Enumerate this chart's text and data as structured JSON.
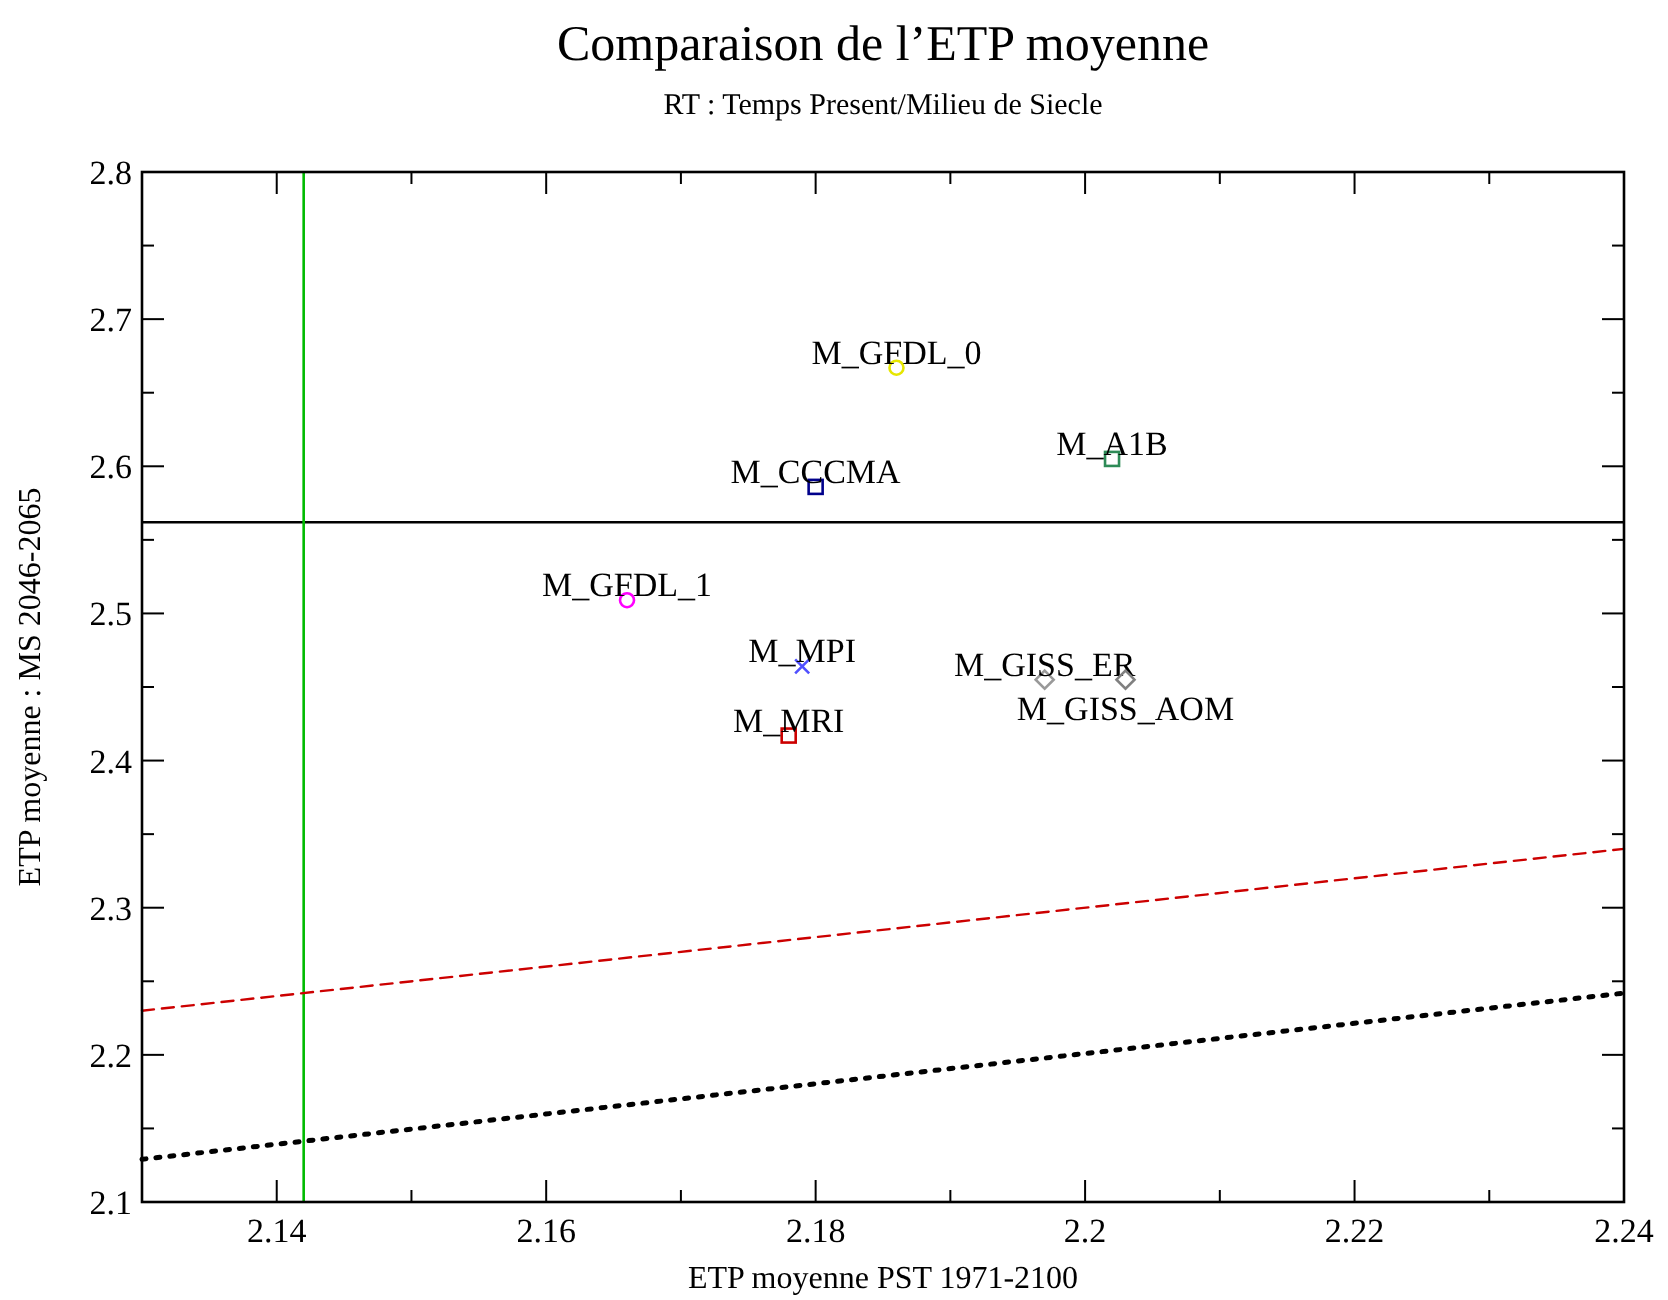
{
  "chart_data": {
    "type": "scatter",
    "title": "Comparaison de l’ETP moyenne",
    "subtitle": "RT : Temps Present/Milieu de Siecle",
    "xlabel": "ETP moyenne PST 1971-2100",
    "ylabel": "ETP moyenne : MS 2046-2065",
    "xlim": [
      2.13,
      2.24
    ],
    "ylim": [
      2.1,
      2.8
    ],
    "xticks": [
      {
        "value": 2.13,
        "label": null
      },
      2.14,
      {
        "value": 2.15,
        "label": null
      },
      2.16,
      {
        "value": 2.17,
        "label": null
      },
      2.18,
      {
        "value": 2.19,
        "label": null
      },
      2.2,
      {
        "value": 2.21,
        "label": null
      },
      2.22,
      {
        "value": 2.23,
        "label": null
      },
      2.24
    ],
    "yticks": [
      2.1,
      {
        "value": 2.15,
        "label": null
      },
      2.2,
      {
        "value": 2.25,
        "label": null
      },
      2.3,
      {
        "value": 2.35,
        "label": null
      },
      2.4,
      {
        "value": 2.45,
        "label": null
      },
      2.5,
      {
        "value": 2.55,
        "label": null
      },
      2.6,
      {
        "value": 2.65,
        "label": null
      },
      2.7,
      {
        "value": 2.75,
        "label": null
      },
      2.8
    ],
    "grid": false,
    "series": [
      {
        "name": "M_GFDL_0",
        "color": "#e6e600",
        "marker": "circle",
        "x": [
          2.186
        ],
        "values": [
          2.667
        ]
      },
      {
        "name": "M_A1B",
        "color": "#2e8b57",
        "marker": "square",
        "x": [
          2.202
        ],
        "values": [
          2.605
        ]
      },
      {
        "name": "M_CCCMA",
        "color": "#00008b",
        "marker": "square",
        "x": [
          2.18
        ],
        "values": [
          2.586
        ]
      },
      {
        "name": "M_GFDL_1",
        "color": "#ff00ff",
        "marker": "circle",
        "x": [
          2.166
        ],
        "values": [
          2.509
        ]
      },
      {
        "name": "M_MPI",
        "color": "#5050ff",
        "marker": "cross",
        "x": [
          2.179
        ],
        "values": [
          2.464
        ]
      },
      {
        "name": "M_MRI",
        "color": "#cc0000",
        "marker": "square",
        "x": [
          2.178
        ],
        "values": [
          2.417
        ]
      },
      {
        "name": "M_GISS_ER",
        "color": "#999999",
        "marker": "diamond",
        "x": [
          2.197
        ],
        "values": [
          2.455
        ]
      },
      {
        "name": "M_GISS_AOM",
        "color": "#808080",
        "marker": "diamond",
        "x": [
          2.203
        ],
        "values": [
          2.455
        ]
      },
      {
        "type": "line",
        "color": "#cc0000",
        "line_style": "dashed",
        "x": [
          2.13,
          2.24
        ],
        "values": [
          2.23,
          2.34
        ]
      },
      {
        "type": "line",
        "color": "#000000",
        "line_style": "dotted",
        "x": [
          2.13,
          2.24
        ],
        "values": [
          2.129,
          2.242
        ]
      }
    ],
    "ref_lines": [
      {
        "axis": "y",
        "value": 2.562,
        "color": "#000000",
        "line_style": "solid"
      },
      {
        "axis": "x",
        "value": 2.142,
        "color": "#00bb00",
        "line_style": "solid"
      }
    ]
  }
}
